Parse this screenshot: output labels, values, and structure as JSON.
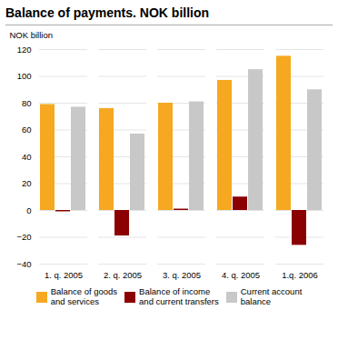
{
  "chart_data": {
    "type": "bar",
    "title": "Balance of payments. NOK billion",
    "ylabel": "NOK billion",
    "categories": [
      "1. q. 2005",
      "2. q. 2005",
      "3. q. 2005",
      "4. q. 2005",
      "1.q. 2006"
    ],
    "series": [
      {
        "name": "Balance of goods\nand services",
        "color": "#F5A820",
        "values": [
          79,
          76,
          80,
          97,
          115
        ]
      },
      {
        "name": "Balance of income\nand current transfers",
        "color": "#8B0000",
        "values": [
          -1,
          -19,
          1,
          10,
          -26
        ]
      },
      {
        "name": "Current account\nbalance",
        "color": "#C8C8C8",
        "values": [
          77,
          57,
          81,
          105,
          90
        ]
      }
    ],
    "ylim": [
      -40,
      120
    ],
    "yticks": [
      -40,
      -20,
      0,
      20,
      40,
      60,
      80,
      100,
      120
    ],
    "grid": true,
    "legend": "bottom"
  }
}
